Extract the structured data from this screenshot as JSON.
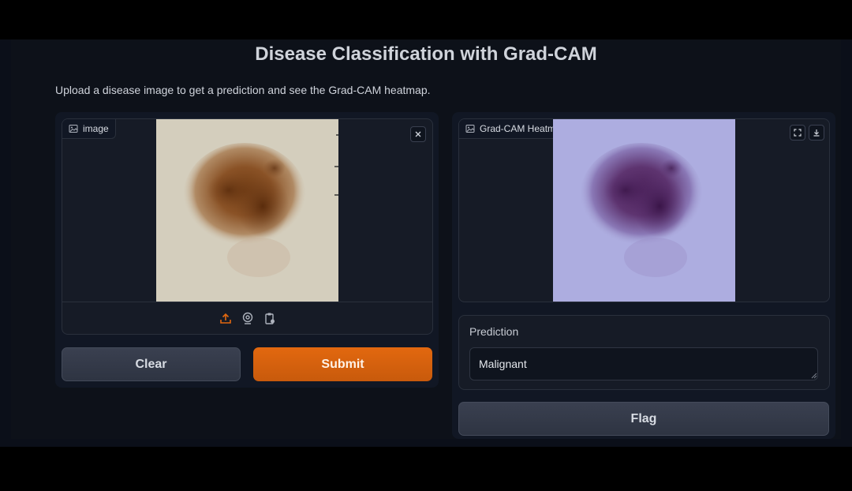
{
  "title": "Disease Classification with Grad-CAM",
  "description": "Upload a disease image to get a prediction and see the Grad-CAM heatmap.",
  "input_panel": {
    "label": "image",
    "source_icons": [
      "upload-icon",
      "webcam-icon",
      "clipboard-icon"
    ],
    "close_icon": "close-icon"
  },
  "buttons": {
    "clear": "Clear",
    "submit": "Submit",
    "flag": "Flag"
  },
  "output_panel": {
    "label": "Grad-CAM Heatmap",
    "action_icons": [
      "fullscreen-icon",
      "download-icon"
    ]
  },
  "prediction": {
    "label": "Prediction",
    "value": "Malignant"
  },
  "colors": {
    "accent": "#e2680f",
    "background": "#0b0f19",
    "panel": "#161b26"
  }
}
